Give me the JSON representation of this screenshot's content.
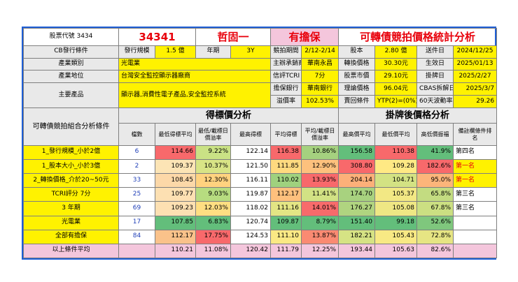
{
  "header": {
    "stock_code_label": "股票代號 3434",
    "code": "34341",
    "name": "哲固一",
    "guarantee": "有擔保",
    "title": "可轉債競拍價格統計分析"
  },
  "info": {
    "cb_label": "CB發行條件",
    "issue_size_label": "發行規模",
    "issue_size": "1.5 億",
    "term_label": "年期",
    "term": "3Y",
    "auction_period_label": "競拍期間",
    "auction_period": "2/12-2/14",
    "capital_label": "股本",
    "capital": "2.80 億",
    "submit_date_label": "送件日",
    "submit_date": "2024/12/25",
    "industry_label": "產業類別",
    "industry": "光電業",
    "underwriter_label": "主辦承銷商",
    "underwriter": "華南永昌",
    "conv_price_label": "轉換價格",
    "conv_price": "30.30元",
    "effective_date_label": "生效日",
    "effective_date": "2025/01/13",
    "position_label": "產業地位",
    "position": "台灣安全監控顯示器廠商",
    "tcri_label": "信評TCRI",
    "tcri": "7分",
    "stock_price_label": "股票市價",
    "stock_price": "29.10元",
    "listing_date_label": "掛牌日",
    "listing_date": "2025/2/27",
    "products_label": "主要產品",
    "products": "顯示器,消費性電子產品,安全監控系統",
    "guarantor_label": "擔保銀行",
    "guarantor": "華南銀行",
    "theory_price_label": "理論價格",
    "theory_price": "96.04元",
    "cbas_label": "CBAS拆解日",
    "cbas_date": "2025/3/7",
    "premium_label": "溢價率",
    "premium": "102.53%",
    "put_label": "賣回條件",
    "put": "YTP(2)=(0%)",
    "vol_label": "60天波動率",
    "vol": "29.26"
  },
  "analysis": {
    "left_title": "可轉債競拍組合分析條件",
    "bid_section": "得標價分析",
    "listing_section": "掛牌後價格分析",
    "col_count": "檔數",
    "col_min_bid": "最低得標平均",
    "col_min_premium": "最低/載標日價溢率",
    "col_max_bid": "最高得標",
    "col_avg_bid": "平均得標",
    "col_avg_premium": "平均/載標日價溢率",
    "col_high": "最高價平均",
    "col_low": "最低價平均",
    "col_amp": "高低價振福",
    "col_rank": "備註欄條件排名"
  },
  "rows": [
    {
      "cond": "1_發行規模_小於2億",
      "count": "6",
      "min_bid": "114.66",
      "min_prem": "9.22%",
      "max_bid": "122.14",
      "avg_bid": "116.38",
      "avg_prem": "10.86%",
      "high": "156.58",
      "low": "110.38",
      "amp": "41.9%",
      "rank": "第四名"
    },
    {
      "cond": "1_股本大小_小於3億",
      "count": "2",
      "min_bid": "109.37",
      "min_prem": "10.37%",
      "max_bid": "121.50",
      "avg_bid": "111.85",
      "avg_prem": "12.90%",
      "high": "308.80",
      "low": "109.28",
      "amp": "182.6%",
      "rank": "第一名"
    },
    {
      "cond": "2_轉換價格_介於20~50元",
      "count": "33",
      "min_bid": "108.45",
      "min_prem": "12.30%",
      "max_bid": "116.11",
      "avg_bid": "110.02",
      "avg_prem": "13.93%",
      "high": "204.14",
      "low": "104.71",
      "amp": "95.0%",
      "rank": "第一名"
    },
    {
      "cond": "TCRI評分 7分",
      "count": "25",
      "min_bid": "109.77",
      "min_prem": "9.03%",
      "max_bid": "119.87",
      "avg_bid": "112.17",
      "avg_prem": "11.41%",
      "high": "174.70",
      "low": "105.37",
      "amp": "65.8%",
      "rank": "第三名"
    },
    {
      "cond": "3 年期",
      "count": "69",
      "min_bid": "109.23",
      "min_prem": "12.03%",
      "max_bid": "118.02",
      "avg_bid": "111.16",
      "avg_prem": "14.01%",
      "high": "176.27",
      "low": "105.08",
      "amp": "67.8%",
      "rank": "第三名"
    },
    {
      "cond": "光電業",
      "count": "17",
      "min_bid": "107.85",
      "min_prem": "6.83%",
      "max_bid": "120.74",
      "avg_bid": "109.87",
      "avg_prem": "8.79%",
      "high": "151.40",
      "low": "99.18",
      "amp": "52.6%",
      "rank": ""
    },
    {
      "cond": "全部有擔保",
      "count": "84",
      "min_bid": "112.17",
      "min_prem": "17.75%",
      "max_bid": "124.53",
      "avg_bid": "111.10",
      "avg_prem": "13.87%",
      "high": "182.21",
      "low": "105.43",
      "amp": "72.8%",
      "rank": ""
    }
  ],
  "summary": {
    "label": "以上條件平均",
    "min_bid": "110.21",
    "min_prem": "11.08%",
    "max_bid": "120.42",
    "avg_bid": "111.79",
    "avg_prem": "12.25%",
    "high": "193.44",
    "low": "105.63",
    "amp": "82.6%"
  },
  "colors": {
    "min_bid": [
      "#f8696b",
      "#fce4b5",
      "#fcd8a8",
      "#fde0b2",
      "#fde0b2",
      "#63be7b",
      "#fac28a"
    ],
    "min_prem": [
      "#cae285",
      "#d8e486",
      "#ffd27f",
      "#b7dc80",
      "#ffde82",
      "#63be7b",
      "#f8696b"
    ],
    "avg_bid": [
      "#f8696b",
      "#ffda7f",
      "#9fd17e",
      "#fec07d",
      "#e3e584",
      "#63be7b",
      "#fbe984"
    ],
    "avg_prem": [
      "#a5d17f",
      "#fdc17d",
      "#f8696b",
      "#d2e284",
      "#f86b6b",
      "#63be7b",
      "#fa8a72"
    ],
    "high": [
      "#63be7b",
      "#f8696b",
      "#fcb079",
      "#a8d27f",
      "#b0d480",
      "#63be7b",
      "#d6e384"
    ],
    "low": [
      "#f8696b",
      "#ffe984",
      "#d3e283",
      "#f2e884",
      "#eee784",
      "#63be7b",
      "#f8e984"
    ],
    "amp": [
      "#63be7b",
      "#f8696b",
      "#fcb57a",
      "#c3dc81",
      "#cbdf82",
      "#7fc77d",
      "#e6e583"
    ],
    "rank": [
      "#ffffff",
      "#fff200",
      "#fff200",
      "#ffffff",
      "#ffffff",
      "#ffffff",
      "#ffffff"
    ]
  }
}
